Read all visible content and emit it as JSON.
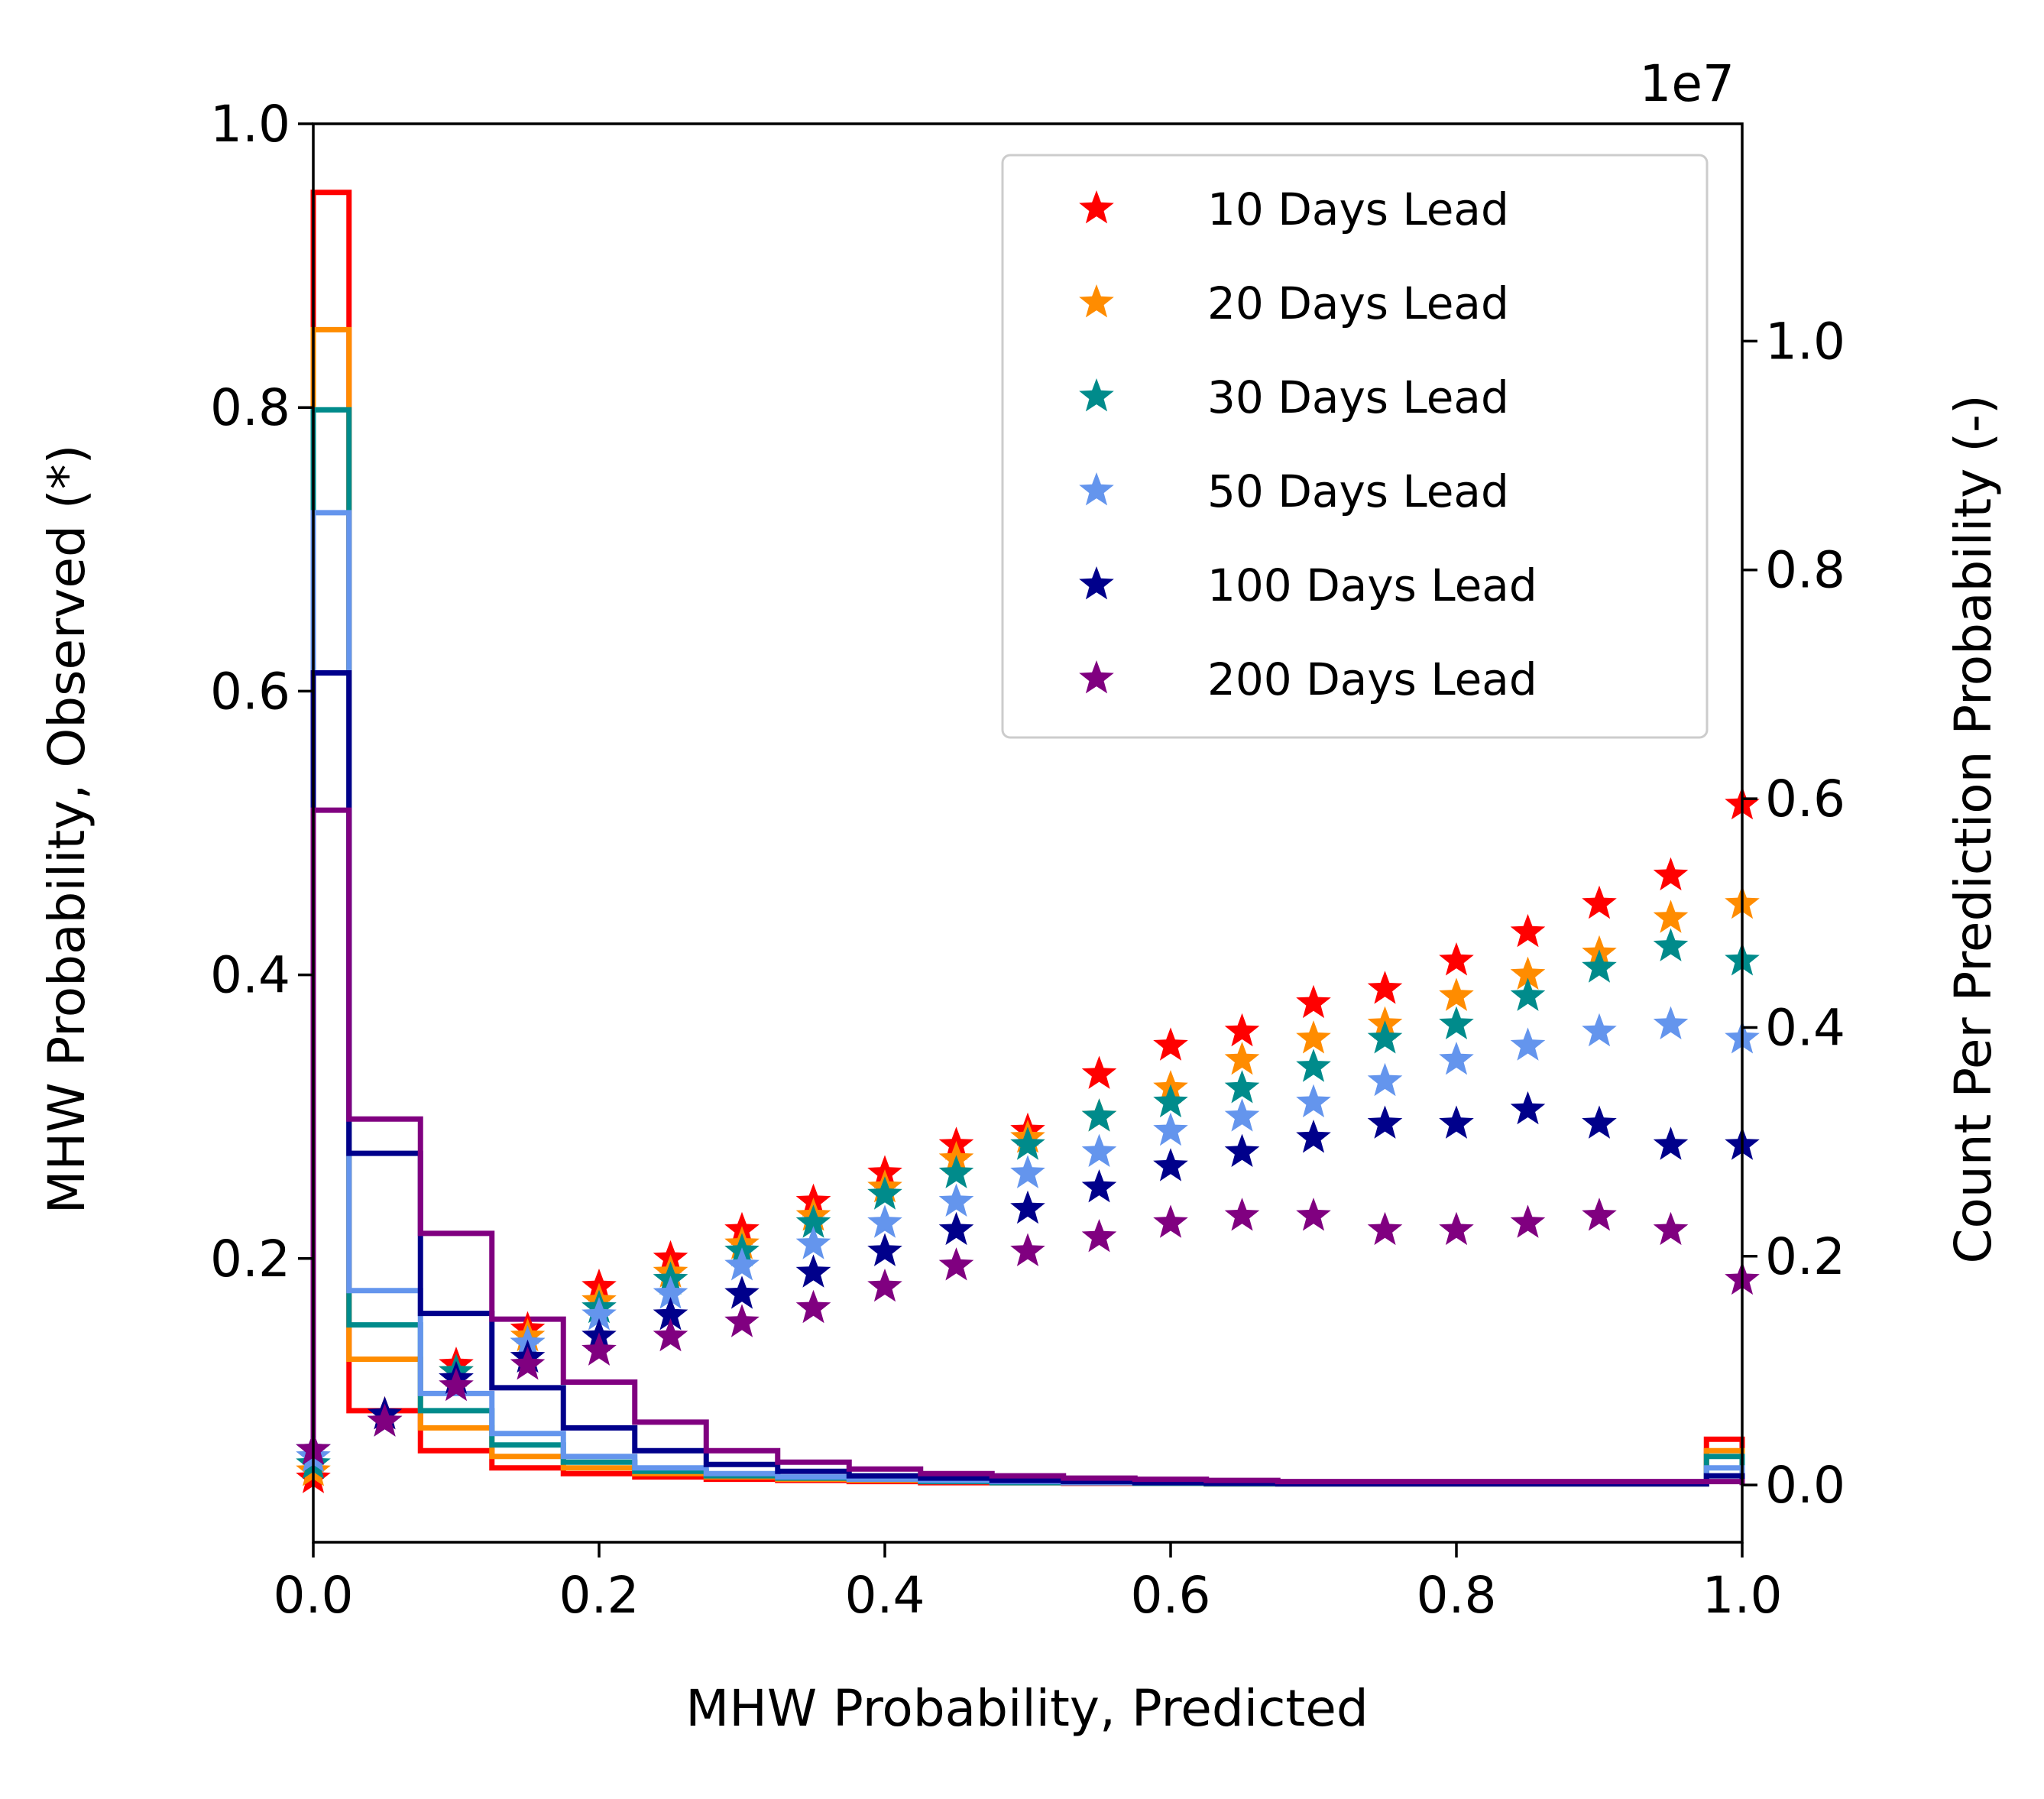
{
  "chart_data": {
    "type": "scatter",
    "xlabel": "MHW Probability, Predicted",
    "ylabel_left": "MHW Probability, Observed (*)",
    "ylabel_right": "Count Per Prediction Probability (-)",
    "right_axis_offset_text": "1e7",
    "xlim": [
      0.0,
      1.0
    ],
    "ylim_left": [
      0.0,
      1.0
    ],
    "ylim_right": [
      -0.05,
      1.19
    ],
    "x_ticks": [
      "0.0",
      "0.2",
      "0.4",
      "0.6",
      "0.8",
      "1.0"
    ],
    "y_left_ticks": [
      "0.2",
      "0.4",
      "0.6",
      "0.8",
      "1.0"
    ],
    "y_right_ticks": [
      "0.0",
      "0.2",
      "0.4",
      "0.6",
      "0.8",
      "1.0"
    ],
    "grid": false,
    "legend_position": "top-right",
    "x": [
      0.0,
      0.05,
      0.1,
      0.15,
      0.2,
      0.25,
      0.3,
      0.35,
      0.4,
      0.45,
      0.5,
      0.55,
      0.6,
      0.65,
      0.7,
      0.75,
      0.8,
      0.85,
      0.9,
      0.95,
      1.0
    ],
    "hist_edges": [
      0.0,
      0.025,
      0.075,
      0.125,
      0.175,
      0.225,
      0.275,
      0.325,
      0.375,
      0.425,
      0.475,
      0.525,
      0.575,
      0.625,
      0.675,
      0.725,
      0.775,
      0.825,
      0.875,
      0.925,
      0.975,
      1.0
    ],
    "series": [
      {
        "name": "10 Days Lead",
        "color": "#ff0000",
        "observed": [
          0.045,
          0.09,
          0.125,
          0.15,
          0.18,
          0.2,
          0.22,
          0.24,
          0.26,
          0.28,
          0.29,
          0.33,
          0.35,
          0.36,
          0.38,
          0.39,
          0.41,
          0.43,
          0.45,
          0.47,
          0.52
        ],
        "counts_1e7": [
          1.13,
          0.065,
          0.03,
          0.015,
          0.01,
          0.007,
          0.005,
          0.004,
          0.003,
          0.002,
          0.002,
          0.0015,
          0.0015,
          0.001,
          0.001,
          0.001,
          0.001,
          0.001,
          0.001,
          0.001,
          0.04
        ]
      },
      {
        "name": "20 Days Lead",
        "color": "#ff8c00",
        "observed": [
          0.05,
          0.085,
          0.12,
          0.145,
          0.17,
          0.19,
          0.21,
          0.23,
          0.25,
          0.27,
          0.285,
          0.3,
          0.32,
          0.34,
          0.355,
          0.365,
          0.385,
          0.4,
          0.415,
          0.44,
          0.45
        ],
        "counts_1e7": [
          1.01,
          0.11,
          0.05,
          0.025,
          0.015,
          0.01,
          0.007,
          0.005,
          0.004,
          0.003,
          0.002,
          0.002,
          0.0015,
          0.001,
          0.001,
          0.001,
          0.001,
          0.001,
          0.001,
          0.001,
          0.03
        ]
      },
      {
        "name": "30 Days Lead",
        "color": "#008b8b",
        "observed": [
          0.055,
          0.085,
          0.12,
          0.14,
          0.165,
          0.185,
          0.205,
          0.225,
          0.245,
          0.26,
          0.28,
          0.3,
          0.31,
          0.32,
          0.335,
          0.355,
          0.365,
          0.385,
          0.405,
          0.42,
          0.41
        ],
        "counts_1e7": [
          0.94,
          0.14,
          0.065,
          0.035,
          0.02,
          0.012,
          0.008,
          0.006,
          0.005,
          0.003,
          0.002,
          0.002,
          0.0015,
          0.001,
          0.001,
          0.001,
          0.001,
          0.001,
          0.001,
          0.001,
          0.025
        ]
      },
      {
        "name": "50 Days Lead",
        "color": "#6495ed",
        "observed": [
          0.06,
          0.085,
          0.115,
          0.14,
          0.16,
          0.175,
          0.195,
          0.21,
          0.225,
          0.24,
          0.26,
          0.275,
          0.29,
          0.3,
          0.31,
          0.325,
          0.34,
          0.35,
          0.36,
          0.365,
          0.355
        ],
        "counts_1e7": [
          0.85,
          0.17,
          0.08,
          0.045,
          0.025,
          0.015,
          0.01,
          0.007,
          0.005,
          0.004,
          0.003,
          0.002,
          0.002,
          0.0015,
          0.001,
          0.001,
          0.001,
          0.001,
          0.001,
          0.001,
          0.015
        ]
      },
      {
        "name": "100 Days Lead",
        "color": "#00008b",
        "observed": [
          0.065,
          0.09,
          0.115,
          0.13,
          0.145,
          0.16,
          0.175,
          0.19,
          0.205,
          0.22,
          0.235,
          0.25,
          0.265,
          0.275,
          0.285,
          0.295,
          0.295,
          0.305,
          0.295,
          0.28,
          0.28
        ],
        "counts_1e7": [
          0.71,
          0.29,
          0.15,
          0.085,
          0.05,
          0.03,
          0.018,
          0.012,
          0.008,
          0.006,
          0.004,
          0.003,
          0.002,
          0.0015,
          0.001,
          0.001,
          0.001,
          0.001,
          0.001,
          0.001,
          0.008
        ]
      },
      {
        "name": "200 Days Lead",
        "color": "#800080",
        "observed": [
          0.065,
          0.085,
          0.11,
          0.125,
          0.135,
          0.145,
          0.155,
          0.165,
          0.18,
          0.195,
          0.205,
          0.215,
          0.225,
          0.23,
          0.23,
          0.22,
          0.22,
          0.225,
          0.23,
          0.22,
          0.185
        ],
        "counts_1e7": [
          0.59,
          0.32,
          0.22,
          0.145,
          0.09,
          0.055,
          0.03,
          0.02,
          0.014,
          0.01,
          0.008,
          0.006,
          0.005,
          0.004,
          0.003,
          0.003,
          0.003,
          0.003,
          0.003,
          0.003,
          0.003
        ]
      }
    ]
  }
}
